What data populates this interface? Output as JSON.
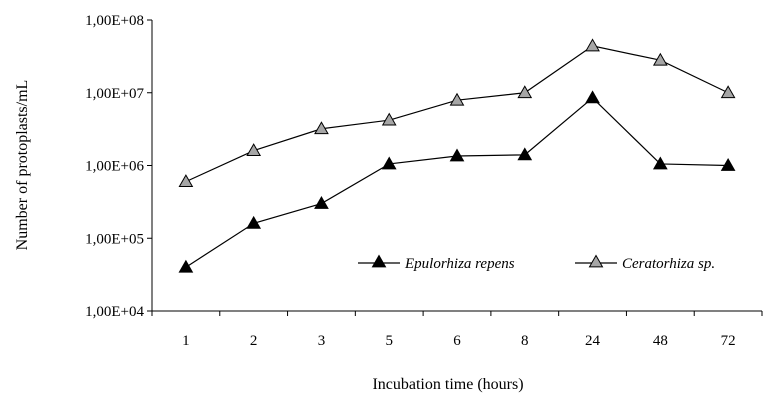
{
  "chart_data": {
    "type": "line",
    "title": "",
    "xlabel": "Incubation time (hours)",
    "ylabel": "Number of protoplasts/mL",
    "categories": [
      "1",
      "2",
      "3",
      "5",
      "6",
      "8",
      "24",
      "48",
      "72"
    ],
    "y_scale": "log",
    "ylim": [
      10000,
      100000000
    ],
    "y_ticks": [
      10000,
      100000,
      1000000,
      10000000,
      100000000
    ],
    "y_tick_labels": [
      "1,00E+04",
      "1,00E+05",
      "1,00E+06",
      "1,00E+07",
      "1,00E+08"
    ],
    "grid": false,
    "legend_position": "lower-right",
    "series": [
      {
        "name": "Epulorhiza repens",
        "marker": "filled-triangle",
        "color": "#000000",
        "values": [
          40000,
          160000,
          300000,
          1050000,
          1350000,
          1400000,
          8500000,
          1050000,
          1000000
        ]
      },
      {
        "name": "Ceratorhiza sp.",
        "marker": "grey-triangle",
        "color": "#a6a6a6",
        "values": [
          600000,
          1600000,
          3200000,
          4200000,
          7900000,
          10000000,
          44000000,
          28000000,
          10000000
        ]
      }
    ]
  }
}
